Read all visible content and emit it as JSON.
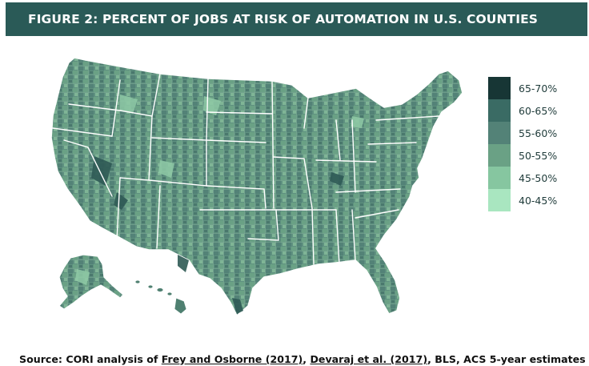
{
  "title": "FIGURE 2: PERCENT OF JOBS AT RISK OF AUTOMATION IN U.S. COUNTIES",
  "legend": [
    {
      "label": "65-70%",
      "color": "#173635"
    },
    {
      "label": "60-65%",
      "color": "#3a6b64"
    },
    {
      "label": "55-60%",
      "color": "#538277"
    },
    {
      "label": "50-55%",
      "color": "#6aa185"
    },
    {
      "label": "45-50%",
      "color": "#86c6a0"
    },
    {
      "label": "40-45%",
      "color": "#a9e6c0"
    }
  ],
  "source": {
    "prefix": "Source: CORI analysis of ",
    "ref1": "Frey and Osborne (2017)",
    "sep": ", ",
    "ref2": "Devaraj et al. (2017)",
    "suffix": ", BLS, ACS 5-year estimates"
  }
}
